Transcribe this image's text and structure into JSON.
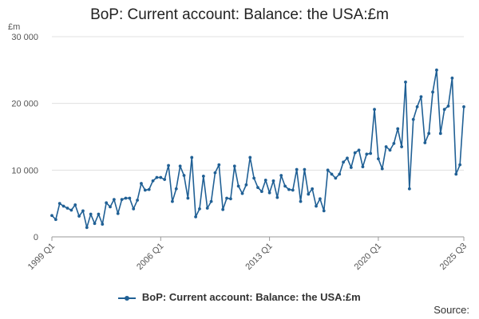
{
  "title": "BoP: Current account: Balance: the USA:£m",
  "source_label": "Source:",
  "colors": {
    "series": "#206095",
    "grid": "#e0e0e0",
    "axis": "#999999",
    "text": "#555555"
  },
  "chart_data": {
    "type": "line",
    "ylabel": "£m",
    "ylim": [
      0,
      30000
    ],
    "yticks": [
      0,
      10000,
      20000,
      30000
    ],
    "ytick_labels": [
      "0",
      "10 000",
      "20 000",
      "30 000"
    ],
    "xtick_labels": [
      "1999 Q1",
      "2006 Q1",
      "2013 Q1",
      "2020 Q1",
      "2025 Q3"
    ],
    "xtick_index": [
      0,
      28,
      56,
      84,
      106
    ],
    "grid": true,
    "legend": "bottom",
    "series": [
      {
        "name": "BoP: Current account: Balance: the USA:£m",
        "values": [
          3200,
          2600,
          5000,
          4600,
          4300,
          4000,
          4800,
          3100,
          3900,
          1400,
          3400,
          2000,
          3400,
          1900,
          5100,
          4500,
          5600,
          3500,
          5600,
          5800,
          5800,
          4200,
          5500,
          8000,
          7000,
          7100,
          8400,
          8900,
          8900,
          8600,
          10700,
          5300,
          7200,
          10600,
          9200,
          5800,
          11900,
          3000,
          4200,
          9100,
          4300,
          5300,
          9600,
          10800,
          4100,
          5800,
          5700,
          10600,
          7600,
          6500,
          7800,
          11900,
          8800,
          7400,
          6800,
          8500,
          6600,
          8400,
          5900,
          9200,
          7600,
          7100,
          7000,
          10100,
          5300,
          10100,
          6400,
          7200,
          4600,
          5700,
          3900,
          10000,
          9400,
          8800,
          9400,
          11200,
          11800,
          10400,
          12600,
          13000,
          10500,
          12400,
          12500,
          19100,
          11700,
          10200,
          13500,
          13000,
          14000,
          16200,
          13500,
          23200,
          7200,
          17600,
          19500,
          21000,
          14100,
          15500,
          21700,
          25000,
          15500,
          19100,
          19600,
          23800,
          9400,
          10800,
          19500
        ]
      }
    ]
  }
}
